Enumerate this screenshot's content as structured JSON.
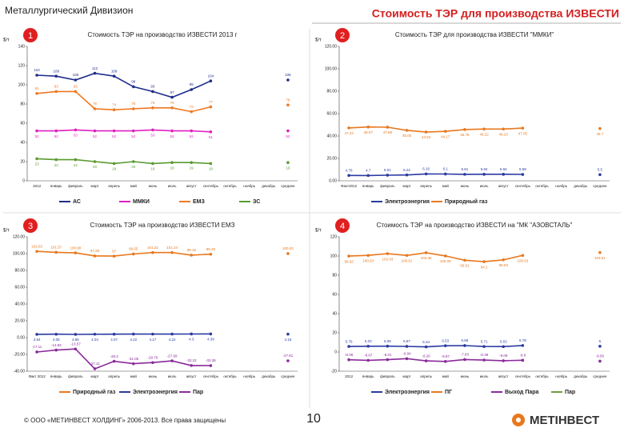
{
  "header": {
    "division": "Металлургический Дивизион",
    "title": "Стоимость ТЭР для производства ИЗВЕСТИ"
  },
  "footer": {
    "copyright": "© ООО «МЕТИНВЕСТ ХОЛДИНГ» 2006-2013. Все права защищены",
    "page": "10",
    "logo": "МЕТІНВЕСТ"
  },
  "chart_data": [
    {
      "type": "line",
      "badge": "1",
      "title": "Стоимость ТЭР на производство ИЗВЕСТИ 2013 г",
      "y_label": "$/т",
      "categories": [
        "2012",
        "январь",
        "февраль",
        "март",
        "апрель",
        "май",
        "июнь",
        "июль",
        "август",
        "сентябрь",
        "октябрь",
        "ноябрь",
        "декабрь",
        "среднее"
      ],
      "ylim": [
        0,
        140
      ],
      "yticks": [
        0,
        20,
        40,
        60,
        80,
        100,
        120,
        140
      ],
      "series": [
        {
          "name": "АС",
          "color": "#1f2d8a",
          "values": [
            110,
            109,
            105,
            112,
            109,
            98,
            93,
            87,
            95,
            104,
            null,
            null,
            null,
            105
          ]
        },
        {
          "name": "ММКИ",
          "color": "#e020c0",
          "values": [
            52,
            52,
            53,
            52,
            52,
            52,
            53,
            52,
            52,
            51,
            null,
            null,
            null,
            52
          ]
        },
        {
          "name": "ЕМЗ",
          "color": "#f07820",
          "values": [
            91,
            93,
            93,
            75,
            74,
            75,
            76,
            76,
            72,
            77,
            null,
            null,
            null,
            79
          ]
        },
        {
          "name": "ЗС",
          "color": "#5a9a30",
          "values": [
            23,
            22,
            22,
            20,
            18,
            20,
            18,
            19,
            19,
            18,
            null,
            null,
            null,
            19
          ]
        }
      ]
    },
    {
      "type": "line",
      "badge": "2",
      "title": "Стоимость ТЭР для производства ИЗВЕСТИ \"ММКИ\"",
      "y_label": "$/т",
      "categories": [
        "Факт2012",
        "январь",
        "февраль",
        "март",
        "апрель",
        "май",
        "июнь",
        "июль",
        "август",
        "сентябрь",
        "октябрь",
        "ноябрь",
        "декабрь",
        "среднее"
      ],
      "ylim": [
        0,
        120
      ],
      "yticks": [
        {
          "value": 0,
          "label": "0.00"
        },
        {
          "value": 20,
          "label": "20.00"
        },
        {
          "value": 40,
          "label": "40.00"
        },
        {
          "value": 60,
          "label": "60.00"
        },
        {
          "value": 80,
          "label": "80.00"
        },
        {
          "value": 100,
          "label": "100.00"
        },
        {
          "value": 120,
          "label": "120.00"
        }
      ],
      "series": [
        {
          "name": "Электроэнергия",
          "color": "#2a3aa0",
          "values": [
            4.78,
            4.7,
            5.01,
            5.22,
            6.16,
            6.1,
            5.81,
            5.84,
            5.84,
            5.68,
            null,
            null,
            null,
            5.5
          ]
        },
        {
          "name": "Природный газ",
          "color": "#e8781e",
          "values": [
            47.24,
            48.07,
            47.88,
            45.05,
            43.53,
            44.17,
            45.78,
            46.22,
            46.23,
            47.05,
            null,
            null,
            null,
            46.7
          ]
        }
      ]
    },
    {
      "type": "line",
      "badge": "3",
      "title": "Стоимость ТЭР на производство ИЗВЕСТИ ЕМЗ",
      "y_label": "$/т",
      "categories": [
        "Факт 2012",
        "январь",
        "февраль",
        "март",
        "апрель",
        "май",
        "июнь",
        "июль",
        "август",
        "сентябрь",
        "октябрь",
        "ноябрь",
        "декабрь",
        "среднее"
      ],
      "ylim": [
        -40,
        120
      ],
      "yticks": [
        {
          "value": -40,
          "label": "-40.00"
        },
        {
          "value": -20,
          "label": "-20.00"
        },
        {
          "value": 0,
          "label": "0.00"
        },
        {
          "value": 20,
          "label": "20.00"
        },
        {
          "value": 40,
          "label": "40.00"
        },
        {
          "value": 60,
          "label": "60.00"
        },
        {
          "value": 80,
          "label": "80.00"
        },
        {
          "value": 100,
          "label": "100.00"
        },
        {
          "value": 120,
          "label": "120.00"
        }
      ],
      "series": [
        {
          "name": "Природный газ",
          "color": "#e8781e",
          "values": [
            102.63,
            101.57,
            100.88,
            97.25,
            97,
            99.55,
            101.22,
            101.24,
            98.18,
            99.29,
            null,
            null,
            null,
            100.03
          ]
        },
        {
          "name": "Электроэнергия",
          "color": "#2a3aa0",
          "values": [
            3.94,
            4.05,
            3.85,
            4.04,
            4.07,
            4.22,
            4.17,
            4.22,
            4.3,
            4.39,
            null,
            null,
            null,
            4.16
          ]
        },
        {
          "name": "Пар",
          "color": "#8a2a9a",
          "values": [
            -17.11,
            -14.83,
            -13.57,
            -37.11,
            -28.2,
            -31.06,
            -29.76,
            -27.69,
            -33.22,
            -33.36,
            null,
            null,
            null,
            -27.61
          ]
        }
      ]
    },
    {
      "type": "line",
      "badge": "4",
      "title": "Стоимость ТЭР на производство ИЗВЕСТИ на \"МК \"АЗОВСТАЛЬ\"",
      "y_label": "$/т",
      "categories": [
        "2012",
        "январь",
        "февраль",
        "март",
        "апрель",
        "май",
        "июнь",
        "июль",
        "август",
        "сентябрь",
        "октябрь",
        "ноябрь",
        "декабрь",
        "среднее"
      ],
      "ylim": [
        -20,
        120
      ],
      "yticks": [
        -20,
        0,
        20,
        40,
        60,
        80,
        100,
        120
      ],
      "series": [
        {
          "name": "Электроэнергия",
          "color": "#2a3aa0",
          "values": [
            5.76,
            6.03,
            6.08,
            5.87,
            5.34,
            6.53,
            6.68,
            5.71,
            5.63,
            6.78,
            null,
            null,
            null,
            6
          ]
        },
        {
          "name": "ПГ",
          "color": "#e8781e",
          "values": [
            99.93,
            100.63,
            102.43,
            100.61,
            103.38,
            100.09,
            95.61,
            94.1,
            96.03,
            100.63,
            null,
            null,
            null,
            103.61
          ]
        },
        {
          "name": "Выход Пара",
          "color": "#8a2a9a",
          "values": [
            -8.08,
            -8.67,
            -8.01,
            -6.94,
            -9.26,
            -9.87,
            -7.83,
            -8.38,
            -9.08,
            -8.6,
            null,
            null,
            null,
            -9.56
          ]
        },
        {
          "name": "Пар",
          "color": "#6aa040",
          "values": [
            null,
            null,
            null,
            null,
            null,
            null,
            null,
            null,
            null,
            null,
            null,
            null,
            null,
            null
          ]
        }
      ]
    }
  ]
}
